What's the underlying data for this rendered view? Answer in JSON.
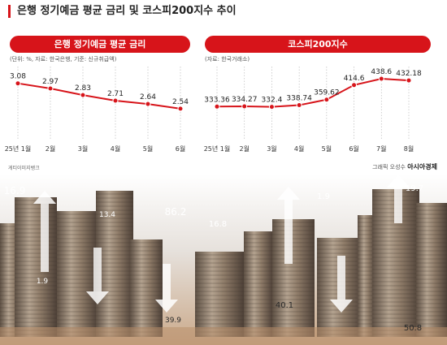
{
  "title": "은행 정기예금 평균 금리 및 코스피200지수 추이",
  "credits": {
    "photo": "게티이미지뱅크",
    "graphic": "그래픽 오성수",
    "publisher": "아시아경제"
  },
  "colors": {
    "accent": "#d7141a"
  },
  "chart_data": [
    {
      "type": "line",
      "title": "은행 정기예금 평균 금리",
      "note": "(단위: %, 자료: 한국은행, 기준: 신규취급액)",
      "x": [
        "25년 1월",
        "2월",
        "3월",
        "4월",
        "5월",
        "6월"
      ],
      "values": [
        3.08,
        2.97,
        2.83,
        2.71,
        2.64,
        2.54
      ],
      "value_labels": [
        "3.08",
        "2.97",
        "2.83",
        "2.71",
        "2.64",
        "2.54"
      ],
      "ylim": [
        2.0,
        3.3
      ],
      "grid": "vertical-dotted"
    },
    {
      "type": "line",
      "title": "코스피200지수",
      "note": "(자료: 한국거래소)",
      "x": [
        "25년 1월",
        "2월",
        "3월",
        "4월",
        "5월",
        "6월",
        "7월",
        "8월"
      ],
      "values": [
        333.36,
        334.27,
        332.4,
        338.74,
        359.62,
        414.6,
        438.6,
        432.18
      ],
      "value_labels": [
        "333.36",
        "334.27",
        "332.4",
        "338.74",
        "359.62",
        "414.6",
        "438.6",
        "432.18"
      ],
      "ylim": [
        230,
        460
      ],
      "grid": "vertical-dotted"
    }
  ],
  "photo_overlay_numbers": [
    "16.9",
    "13.4",
    "86.2",
    "16.8",
    "1.9",
    "19.7",
    "1.9",
    "39.9",
    "40.1",
    "50.8"
  ],
  "photo_icons": [
    "coin-stack-icon",
    "arrow-up-icon",
    "arrow-down-icon"
  ]
}
